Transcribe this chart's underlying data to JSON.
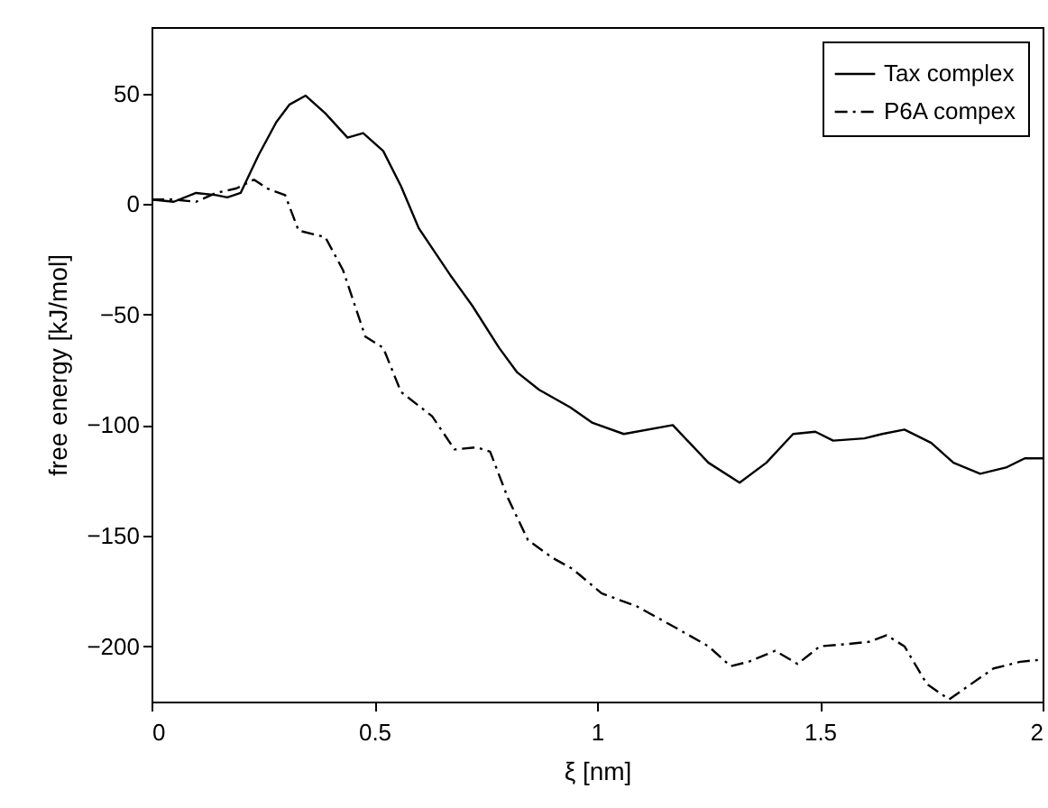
{
  "chart_data": {
    "type": "line",
    "xlabel": "ξ [nm]",
    "ylabel": "free energy [kJ/mol]",
    "xlim": [
      0,
      2
    ],
    "ylim": [
      -225,
      80
    ],
    "xticks": [
      0,
      0.5,
      1,
      1.5,
      2
    ],
    "yticks": [
      -200,
      -150,
      -100,
      -50,
      0,
      50
    ],
    "grid": false,
    "legend": "top right",
    "marker": "none",
    "series": [
      {
        "name": "Tax complex",
        "color": "#000000",
        "line_style": "solid",
        "x": [
          0,
          0.05,
          0.1,
          0.145,
          0.17,
          0.2,
          0.24,
          0.28,
          0.31,
          0.346,
          0.39,
          0.44,
          0.475,
          0.52,
          0.56,
          0.6,
          0.67,
          0.72,
          0.78,
          0.82,
          0.87,
          0.94,
          0.99,
          1.06,
          1.17,
          1.25,
          1.32,
          1.38,
          1.44,
          1.49,
          1.53,
          1.6,
          1.64,
          1.69,
          1.75,
          1.8,
          1.86,
          1.92,
          1.96,
          2
        ],
        "values": [
          2,
          1,
          5,
          4,
          3,
          5,
          22,
          37,
          45,
          49,
          41,
          30,
          32,
          24,
          8,
          -11,
          -32,
          -46,
          -65,
          -76,
          -84,
          -92,
          -99,
          -104,
          -100,
          -117,
          -126,
          -117,
          -104,
          -103,
          -107,
          -106,
          -104,
          -102,
          -108,
          -117,
          -122,
          -119,
          -115,
          -115
        ]
      },
      {
        "name": "P6A compex",
        "color": "#000000",
        "line_style": "dashdot",
        "x": [
          0,
          0.05,
          0.1,
          0.145,
          0.19,
          0.23,
          0.26,
          0.3,
          0.33,
          0.39,
          0.43,
          0.48,
          0.52,
          0.56,
          0.63,
          0.68,
          0.73,
          0.76,
          0.8,
          0.845,
          0.9,
          0.945,
          1.01,
          1.09,
          1.18,
          1.25,
          1.3,
          1.34,
          1.4,
          1.45,
          1.5,
          1.56,
          1.61,
          1.65,
          1.69,
          1.74,
          1.79,
          1.84,
          1.89,
          1.95,
          2
        ],
        "values": [
          2,
          2,
          1,
          5,
          7,
          11,
          7,
          4,
          -12,
          -15,
          -30,
          -60,
          -65,
          -85,
          -96,
          -111,
          -110,
          -112,
          -133,
          -152,
          -160,
          -165,
          -176,
          -182,
          -192,
          -200,
          -209,
          -207,
          -202,
          -208,
          -200,
          -199,
          -198,
          -195,
          -200,
          -217,
          -224,
          -217,
          -210,
          -207,
          -206
        ]
      }
    ]
  }
}
